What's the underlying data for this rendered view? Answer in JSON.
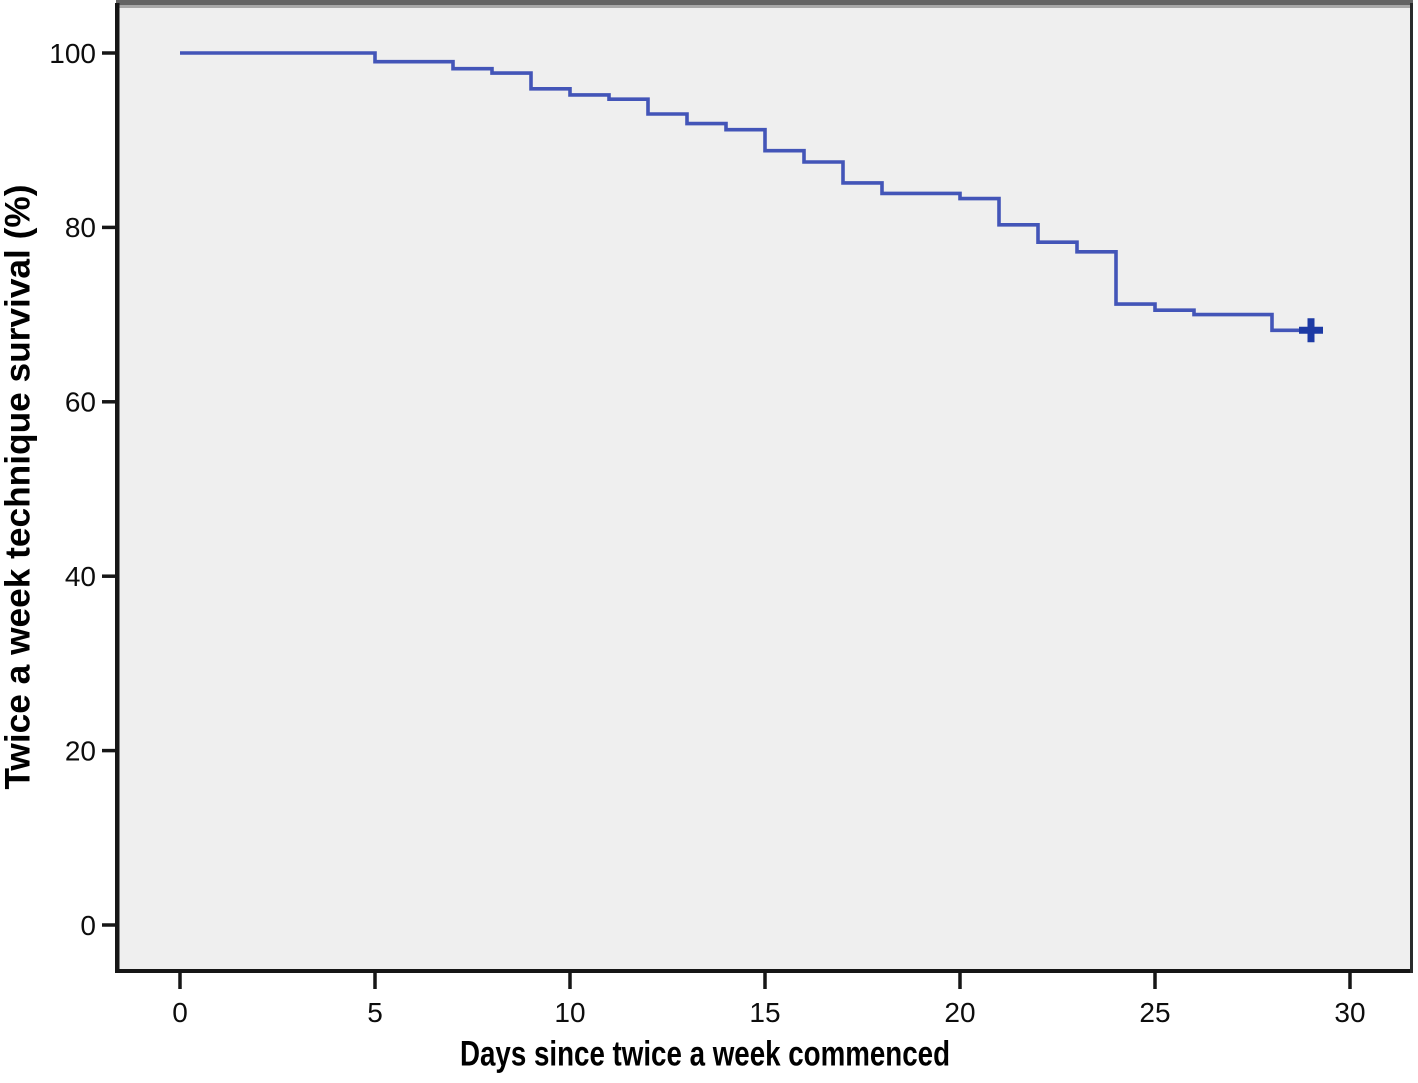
{
  "chart_data": {
    "type": "line",
    "subtype": "kaplan-meier-step-curve",
    "title": "",
    "xlabel": "Days since twice a week commenced",
    "ylabel": "Twice a week technique survival (%)",
    "x_ticks": [
      0,
      5,
      10,
      15,
      20,
      25,
      30
    ],
    "y_ticks": [
      0,
      20,
      40,
      60,
      80,
      100
    ],
    "xlim": [
      -1.6,
      31.6
    ],
    "ylim": [
      -5.4,
      105.2
    ],
    "grid": false,
    "legend": false,
    "series": [
      {
        "name": "Twice a week technique survival",
        "step": true,
        "points": [
          [
            0,
            100.0
          ],
          [
            5,
            99.0
          ],
          [
            7,
            98.2
          ],
          [
            8,
            97.7
          ],
          [
            9,
            95.9
          ],
          [
            10,
            95.2
          ],
          [
            11,
            94.7
          ],
          [
            12,
            93.0
          ],
          [
            13,
            91.9
          ],
          [
            14,
            91.2
          ],
          [
            15,
            88.8
          ],
          [
            16,
            87.5
          ],
          [
            17,
            85.1
          ],
          [
            18,
            83.9
          ],
          [
            20,
            83.3
          ],
          [
            21,
            80.3
          ],
          [
            22,
            78.3
          ],
          [
            23,
            77.2
          ],
          [
            24,
            71.2
          ],
          [
            25,
            70.5
          ],
          [
            26,
            70.0
          ],
          [
            28,
            68.2
          ]
        ],
        "end_x": 29.3,
        "color": "#4355b8"
      }
    ],
    "censored": [
      {
        "x": 29,
        "y": 68.2
      }
    ],
    "censor_color": "#1d3aa4",
    "plot_background": "#efefef",
    "axis_color": "#161616",
    "text_color": "#0d0d0d"
  }
}
